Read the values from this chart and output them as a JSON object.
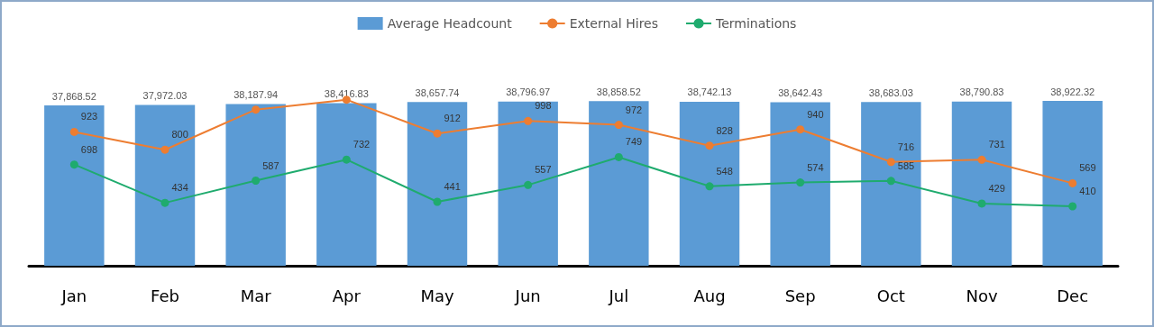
{
  "chart_data": {
    "type": "bar",
    "categories": [
      "Jan",
      "Feb",
      "Mar",
      "Apr",
      "May",
      "Jun",
      "Jul",
      "Aug",
      "Sep",
      "Oct",
      "Nov",
      "Dec"
    ],
    "series": [
      {
        "name": "Average Headcount",
        "color": "#5b9bd5",
        "values": [
          37868.52,
          37972.03,
          38187.94,
          38416.83,
          38657.74,
          38796.97,
          38858.52,
          38742.13,
          38642.43,
          38683.03,
          38790.83,
          38922.32
        ],
        "value_labels": [
          "37,868.52",
          "37,972.03",
          "38,187.94",
          "38,416.83",
          "38,657.74",
          "38,796.97",
          "38,858.52",
          "38,742.13",
          "38,642.43",
          "38,683.03",
          "38,790.83",
          "38,922.32"
        ]
      },
      {
        "name": "External Hires",
        "type": "line",
        "axis": "y2",
        "color": "#ed7d31",
        "values": [
          923,
          800,
          1077,
          1145,
          912,
          998,
          972,
          828,
          940,
          716,
          731,
          569
        ],
        "value_labels": [
          "923",
          "800",
          null,
          null,
          "912",
          "998",
          "972",
          "828",
          "940",
          "716",
          "731",
          "569"
        ]
      },
      {
        "name": "Terminations",
        "type": "line",
        "axis": "y2",
        "color": "#1fab6e",
        "values": [
          698,
          434,
          587,
          732,
          441,
          557,
          749,
          548,
          574,
          585,
          429,
          410
        ],
        "value_labels": [
          "698",
          "434",
          "587",
          "732",
          "441",
          "557",
          "749",
          "548",
          "574",
          "585",
          "429",
          "410"
        ]
      }
    ],
    "marker": "circle",
    "legend": "top",
    "grid": false,
    "tick_labels": "x"
  }
}
